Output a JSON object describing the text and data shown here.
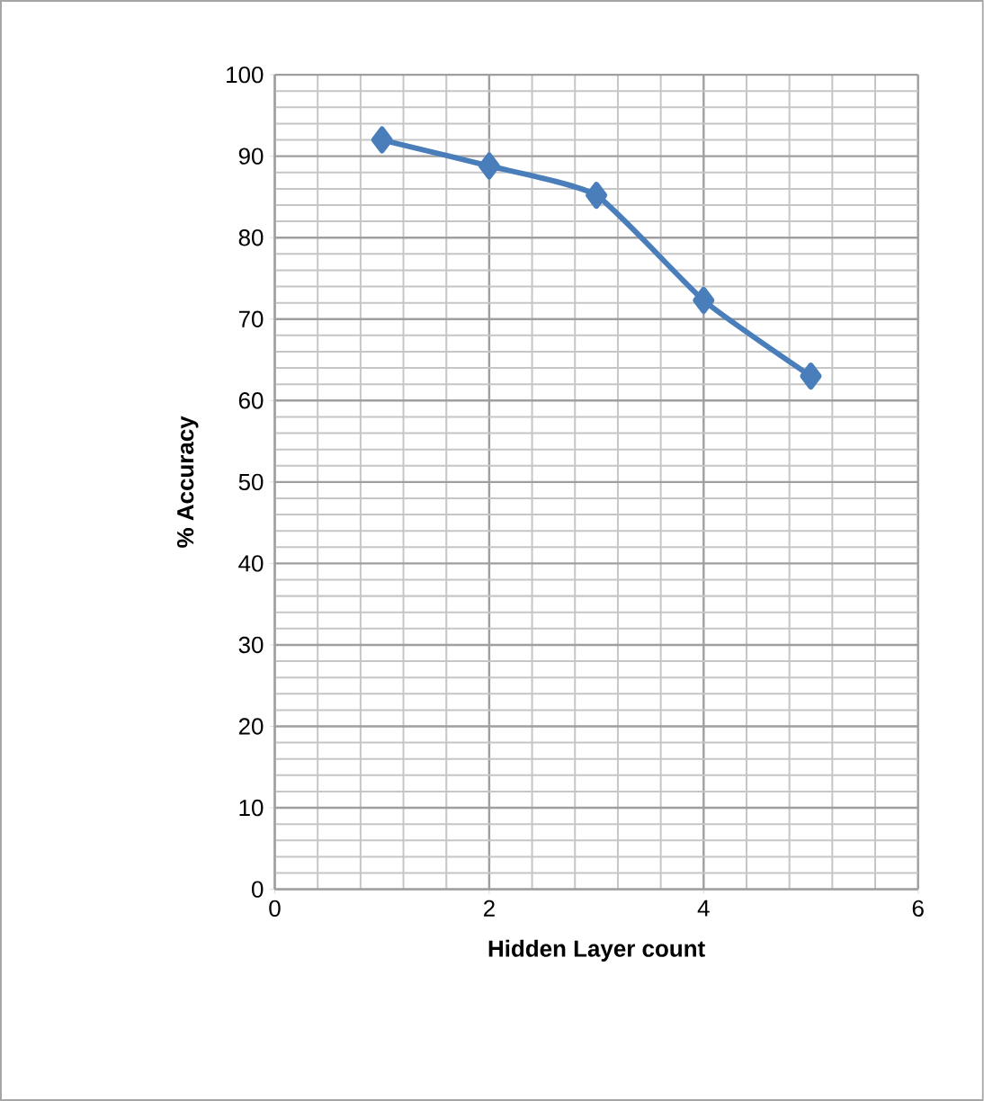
{
  "chart_data": {
    "type": "line",
    "xlabel": "Hidden Layer count",
    "ylabel": "% Accuracy",
    "x": [
      1,
      2,
      3,
      4,
      5
    ],
    "series": [
      {
        "color": "#4a7ebb",
        "values": [
          92,
          88.8,
          85.2,
          72.3,
          63
        ]
      }
    ],
    "xlim": [
      0,
      6
    ],
    "xticks": [
      0,
      2,
      4,
      6
    ],
    "ylim": [
      0,
      100
    ],
    "yticks": [
      0,
      10,
      20,
      30,
      40,
      50,
      60,
      70,
      80,
      90,
      100
    ],
    "grid": true,
    "marker": "diamond",
    "line_style": "solid"
  }
}
